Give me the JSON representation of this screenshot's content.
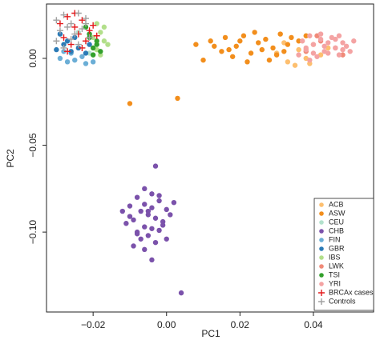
{
  "chart_data": {
    "type": "scatter",
    "x_label": "PC1",
    "y_label": "PC2",
    "xlim": [
      -0.0327,
      0.0564
    ],
    "ylim": [
      -0.146,
      0.0313
    ],
    "xticks": [
      {
        "value": -0.02,
        "label": "−0.02"
      },
      {
        "value": 0,
        "label": "0.00"
      },
      0.02,
      0.04
    ],
    "yticks": [
      {
        "value": -0.1,
        "label": "−0.10"
      },
      {
        "value": -0.05,
        "label": "−0.05"
      },
      {
        "value": 0,
        "label": "0.00"
      }
    ],
    "grid": false,
    "legend": "lower right",
    "series": [
      {
        "name": "ACB",
        "color": "#fdbf6f",
        "marker": "circle",
        "x": [
          0.03,
          0.033,
          0.036,
          0.038,
          0.04,
          0.042,
          0.035,
          0.044,
          0.032,
          0.039
        ],
        "values": [
          0.003,
          -0.002,
          0.005,
          0.0,
          0.008,
          0.002,
          -0.004,
          0.006,
          0.009,
          -0.003
        ]
      },
      {
        "name": "ASW",
        "color": "#f28e1c",
        "marker": "circle",
        "x": [
          -0.01,
          0.003,
          0.01,
          0.015,
          0.008,
          0.012,
          0.016,
          0.019,
          0.021,
          0.023,
          0.025,
          0.027,
          0.029,
          0.031,
          0.033,
          0.018,
          0.022,
          0.026,
          0.03,
          0.034,
          0.02,
          0.024,
          0.028,
          0.013,
          0.036,
          0.038,
          0.017,
          0.032
        ],
        "values": [
          -0.026,
          -0.023,
          -0.001,
          0.004,
          0.008,
          0.01,
          0.012,
          0.007,
          0.013,
          0.003,
          0.009,
          0.011,
          0.006,
          0.014,
          0.008,
          0.001,
          -0.002,
          0.005,
          0.002,
          0.012,
          0.01,
          0.015,
          -0.001,
          0.007,
          0.01,
          0.013,
          0.005,
          0.004
        ]
      },
      {
        "name": "CEU",
        "color": "#b3e2cd",
        "marker": "circle",
        "x": [
          -0.024,
          -0.021
        ],
        "values": [
          0.015,
          0.003
        ]
      },
      {
        "name": "CHB",
        "color": "#7b52ab",
        "marker": "circle",
        "x": [
          -0.003,
          0.004,
          -0.006,
          -0.004,
          -0.008,
          -0.01,
          -0.002,
          0.0,
          -0.007,
          -0.005,
          -0.003,
          -0.009,
          -0.011,
          -0.001,
          0.001,
          -0.006,
          -0.004,
          -0.008,
          -0.002,
          -0.005,
          -0.007,
          -0.003,
          -0.009,
          0.0,
          -0.006,
          -0.004,
          -0.001,
          -0.01,
          -0.005,
          -0.008,
          -0.002,
          -0.006,
          0.002,
          -0.012,
          -0.004
        ],
        "values": [
          -0.062,
          -0.135,
          -0.075,
          -0.078,
          -0.08,
          -0.085,
          -0.082,
          -0.087,
          -0.088,
          -0.09,
          -0.092,
          -0.093,
          -0.095,
          -0.094,
          -0.09,
          -0.097,
          -0.098,
          -0.1,
          -0.099,
          -0.102,
          -0.104,
          -0.106,
          -0.108,
          -0.104,
          -0.084,
          -0.086,
          -0.096,
          -0.091,
          -0.088,
          -0.101,
          -0.079,
          -0.11,
          -0.083,
          -0.088,
          -0.116
        ]
      },
      {
        "name": "FIN",
        "color": "#6baed6",
        "marker": "circle",
        "x": [
          -0.029,
          -0.027,
          -0.025,
          -0.022,
          -0.02,
          -0.026,
          -0.023,
          -0.028
        ],
        "values": [
          0.0,
          -0.002,
          -0.001,
          -0.003,
          -0.002,
          0.003,
          0.001,
          0.004
        ]
      },
      {
        "name": "GBR",
        "color": "#2c7bb6",
        "marker": "circle",
        "x": [
          -0.03,
          -0.028,
          -0.026,
          -0.024,
          -0.022,
          -0.027,
          -0.025,
          -0.029,
          -0.021
        ],
        "values": [
          0.005,
          0.008,
          0.004,
          0.006,
          0.003,
          0.01,
          0.012,
          0.014,
          0.008
        ]
      },
      {
        "name": "IBS",
        "color": "#b2df8a",
        "marker": "circle",
        "x": [
          -0.018,
          -0.017,
          -0.019,
          -0.016,
          -0.02,
          -0.018,
          -0.017,
          -0.019
        ],
        "values": [
          0.015,
          0.01,
          0.005,
          0.008,
          0.012,
          0.002,
          0.018,
          0.02
        ]
      },
      {
        "name": "LWK",
        "color": "#f08a78",
        "marker": "circle",
        "x": [
          0.038,
          0.042,
          0.046,
          0.048,
          0.041
        ],
        "values": [
          0.004,
          0.01,
          0.006,
          0.002,
          0.013
        ]
      },
      {
        "name": "TSI",
        "color": "#33a02c",
        "marker": "circle",
        "x": [
          -0.02,
          -0.019,
          -0.021,
          -0.018,
          -0.022,
          -0.02,
          -0.019,
          -0.021
        ],
        "values": [
          0.006,
          0.01,
          0.014,
          0.004,
          0.018,
          0.002,
          0.008,
          0.012
        ]
      },
      {
        "name": "YRI",
        "color": "#f4a3a3",
        "marker": "circle",
        "x": [
          0.036,
          0.038,
          0.04,
          0.042,
          0.044,
          0.046,
          0.048,
          0.05,
          0.037,
          0.039,
          0.041,
          0.043,
          0.045,
          0.047,
          0.049,
          0.051,
          0.038,
          0.04,
          0.042,
          0.044,
          0.046,
          0.048,
          0.039,
          0.043,
          0.047
        ],
        "values": [
          0.002,
          0.005,
          0.008,
          0.011,
          0.003,
          0.006,
          0.009,
          0.004,
          0.01,
          0.013,
          0.001,
          0.007,
          0.012,
          0.002,
          0.007,
          0.01,
          0.006,
          0.003,
          0.014,
          0.009,
          0.011,
          0.005,
          -0.001,
          0.004,
          0.013
        ]
      },
      {
        "name": "BRCAx cases",
        "color": "#e41a1c",
        "marker": "plus",
        "x": [
          -0.029,
          -0.027,
          -0.025,
          -0.023,
          -0.021,
          -0.028,
          -0.026,
          -0.024,
          -0.022,
          -0.02,
          -0.027,
          -0.025,
          -0.023,
          -0.019
        ],
        "values": [
          0.02,
          0.024,
          0.018,
          0.022,
          0.016,
          0.012,
          0.008,
          0.014,
          0.01,
          0.019,
          0.004,
          0.026,
          0.006,
          0.013
        ]
      },
      {
        "name": "Controls",
        "color": "#a0a0a0",
        "marker": "plus",
        "x": [
          -0.03,
          -0.028,
          -0.026,
          -0.024,
          -0.022,
          -0.029,
          -0.027,
          -0.025,
          -0.023,
          -0.021,
          -0.03,
          -0.026,
          -0.024,
          -0.022,
          -0.028
        ],
        "values": [
          0.022,
          0.025,
          0.02,
          0.026,
          0.023,
          0.016,
          0.018,
          0.014,
          0.017,
          0.012,
          0.01,
          0.011,
          0.008,
          0.02,
          0.006
        ]
      }
    ]
  }
}
